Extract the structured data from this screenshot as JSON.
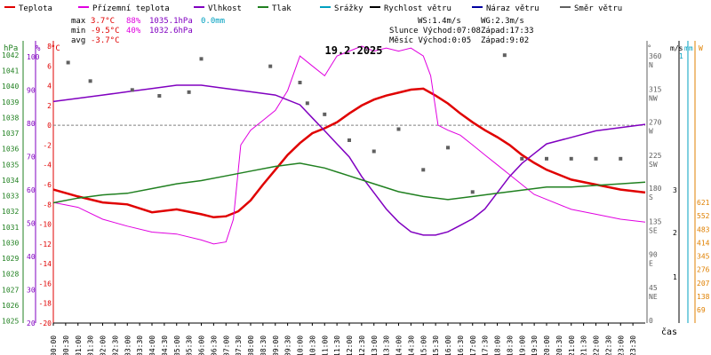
{
  "legend": [
    {
      "label": "Teplota",
      "color": "#e00000"
    },
    {
      "label": "Přízemní teplota",
      "color": "#e000e0"
    },
    {
      "label": "Vlhkost",
      "color": "#8000c0"
    },
    {
      "label": "Tlak",
      "color": "#208020"
    },
    {
      "label": "Srážky",
      "color": "#00a0c0"
    },
    {
      "label": "Rychlost větru",
      "color": "#000000"
    },
    {
      "label": "Náraz větru",
      "color": "#0000a0"
    },
    {
      "label": "Směr větru",
      "color": "#606060"
    }
  ],
  "stats": {
    "max_label": "max",
    "max_temp": "3.7°C",
    "max_hum": "88%",
    "max_press": "1035.1hPa",
    "max_rain": "0.0mm",
    "min_label": "min",
    "min_temp": "-9.5°C",
    "min_hum": "40%",
    "min_press": "1032.6hPa",
    "avg_label": "avg",
    "avg_temp": "-3.7°C",
    "ws": "WS:1.4m/s",
    "wg": "WG:2.3m/s",
    "sun": "Slunce Východ:07:08",
    "sun_set": "Západ:17:33",
    "moon": "Měsíc  Východ:0:05",
    "moon_set": "Západ:9:02"
  },
  "chart_data": {
    "type": "line",
    "title": "19.2.2025",
    "xlabel": "čas",
    "x_ticks": [
      "00:00",
      "00:30",
      "01:00",
      "01:30",
      "02:00",
      "02:30",
      "03:00",
      "03:30",
      "04:00",
      "04:30",
      "05:00",
      "05:30",
      "06:00",
      "06:30",
      "07:00",
      "07:30",
      "08:00",
      "08:30",
      "09:00",
      "09:30",
      "10:00",
      "10:30",
      "11:00",
      "11:30",
      "12:00",
      "12:30",
      "13:00",
      "13:30",
      "14:00",
      "14:30",
      "15:00",
      "15:30",
      "16:00",
      "16:30",
      "17:00",
      "17:30",
      "18:00",
      "18:30",
      "19:00",
      "19:30",
      "20:00",
      "20:30",
      "21:00",
      "21:30",
      "22:00",
      "22:30",
      "23:00",
      "23:30"
    ],
    "axes": {
      "pressure": {
        "unit": "hPa",
        "ticks": [
          "1042",
          "1041",
          "1040",
          "1039",
          "1038",
          "1037",
          "1036",
          "1035",
          "1034",
          "1033",
          "1032",
          "1031",
          "1030",
          "1029",
          "1028",
          "1027",
          "1026",
          "1025"
        ]
      },
      "humidity": {
        "unit": "%",
        "ticks": [
          "100",
          "90",
          "80",
          "70",
          "60",
          "50",
          "40",
          "30",
          "20"
        ]
      },
      "temperature": {
        "unit": "°C",
        "range": [
          -20,
          8
        ],
        "ticks": [
          "8",
          "6",
          "4",
          "2",
          "0",
          "-2",
          "-4",
          "-6",
          "-8",
          "-10",
          "-12",
          "-14",
          "-16",
          "-18",
          "-20"
        ]
      },
      "direction": {
        "unit": "°",
        "ticks": [
          "360",
          "315",
          "270",
          "225",
          "180",
          "135",
          "90",
          "45",
          "0"
        ],
        "labels": [
          "N",
          "NW",
          "W",
          "SW",
          "S",
          "SE",
          "E",
          "NE",
          ""
        ]
      },
      "wind": {
        "unit": "m/s",
        "ticks": [
          "3",
          "2",
          "1"
        ]
      },
      "rain": {
        "unit": "mm",
        "ticks": [
          "1"
        ]
      },
      "solar": {
        "unit": "W",
        "ticks": [
          "621",
          "552",
          "483",
          "414",
          "345",
          "276",
          "207",
          "138",
          "69"
        ]
      }
    },
    "series": [
      {
        "name": "Teplota",
        "x": [
          0,
          1,
          2,
          3,
          4,
          5,
          6,
          6.5,
          7,
          7.5,
          8,
          8.5,
          9,
          9.5,
          10,
          10.5,
          11,
          11.5,
          12,
          12.5,
          13,
          13.5,
          14,
          14.5,
          15,
          15.5,
          16,
          16.5,
          17,
          17.5,
          18,
          18.5,
          19,
          19.5,
          20,
          21,
          22,
          23,
          24
        ],
        "values": [
          -6.5,
          -7.2,
          -7.8,
          -8.0,
          -8.8,
          -8.5,
          -9.0,
          -9.3,
          -9.2,
          -8.7,
          -7.6,
          -6.0,
          -4.5,
          -3.0,
          -1.8,
          -0.8,
          -0.3,
          0.3,
          1.2,
          2.0,
          2.6,
          3.0,
          3.3,
          3.6,
          3.7,
          3.0,
          2.2,
          1.2,
          0.3,
          -0.5,
          -1.2,
          -2.0,
          -3.0,
          -3.8,
          -4.5,
          -5.5,
          -6.0,
          -6.5,
          -6.8
        ]
      },
      {
        "name": "Přízemní teplota",
        "x": [
          0,
          1,
          2,
          3,
          4,
          5,
          6,
          6.5,
          7,
          7.3,
          7.6,
          8,
          8.5,
          9,
          9.5,
          10,
          10.5,
          11,
          11.5,
          12,
          12.5,
          13,
          13.5,
          14,
          14.5,
          15,
          15.3,
          15.6,
          16,
          16.5,
          17,
          17.5,
          18,
          18.5,
          19,
          19.5,
          20,
          21,
          22,
          23,
          24
        ],
        "values": [
          -7.8,
          -8.3,
          -9.5,
          -10.2,
          -10.8,
          -11.0,
          -11.6,
          -12.0,
          -11.8,
          -9.5,
          -2.0,
          -0.5,
          0.5,
          1.5,
          3.5,
          7.0,
          6.0,
          5.0,
          7.0,
          7.5,
          8.0,
          7.5,
          7.8,
          7.5,
          7.8,
          7.0,
          5.0,
          0.0,
          -0.5,
          -1.0,
          -2.0,
          -3.0,
          -4.0,
          -5.0,
          -6.0,
          -7.0,
          -7.5,
          -8.5,
          -9.0,
          -9.5,
          -9.8
        ]
      },
      {
        "name": "Vlhkost",
        "x": [
          0,
          1,
          2,
          3,
          4,
          5,
          6,
          7,
          8,
          9,
          10,
          10.5,
          11,
          11.5,
          12,
          12.5,
          13,
          13.5,
          14,
          14.5,
          15,
          15.5,
          16,
          16.5,
          17,
          17.5,
          18,
          18.5,
          19,
          19.5,
          20,
          21,
          22,
          23,
          24
        ],
        "values": [
          83,
          84,
          85,
          86,
          87,
          88,
          88,
          87,
          86,
          85,
          82,
          78,
          74,
          70,
          66,
          60,
          55,
          50,
          46,
          43,
          42,
          42,
          43,
          45,
          47,
          50,
          55,
          60,
          64,
          67,
          70,
          72,
          74,
          75,
          76
        ]
      },
      {
        "name": "Tlak",
        "x": [
          0,
          1,
          2,
          3,
          4,
          5,
          6,
          7,
          8,
          9,
          10,
          11,
          12,
          13,
          14,
          15,
          16,
          17,
          18,
          19,
          20,
          21,
          22,
          23,
          24
        ],
        "values": [
          1032.6,
          1032.9,
          1033.1,
          1033.2,
          1033.5,
          1033.8,
          1034.0,
          1034.3,
          1034.6,
          1034.9,
          1035.1,
          1034.8,
          1034.3,
          1033.8,
          1033.3,
          1033.0,
          1032.8,
          1033.0,
          1033.2,
          1033.4,
          1033.6,
          1033.6,
          1033.7,
          1033.8,
          1033.9
        ]
      },
      {
        "name": "Směr větru",
        "x": [
          0.6,
          1.5,
          3.2,
          4.3,
          5.5,
          6.0,
          8.8,
          10.0,
          10.3,
          11.0,
          12.0,
          13.0,
          14.0,
          15.0,
          16.0,
          17.0,
          18.3,
          19.0,
          20.0,
          21.0,
          22.0,
          23.0
        ],
        "values": [
          345,
          320,
          308,
          300,
          305,
          350,
          340,
          318,
          290,
          275,
          240,
          225,
          255,
          200,
          230,
          170,
          355,
          215,
          215,
          215,
          215,
          215
        ]
      }
    ]
  }
}
